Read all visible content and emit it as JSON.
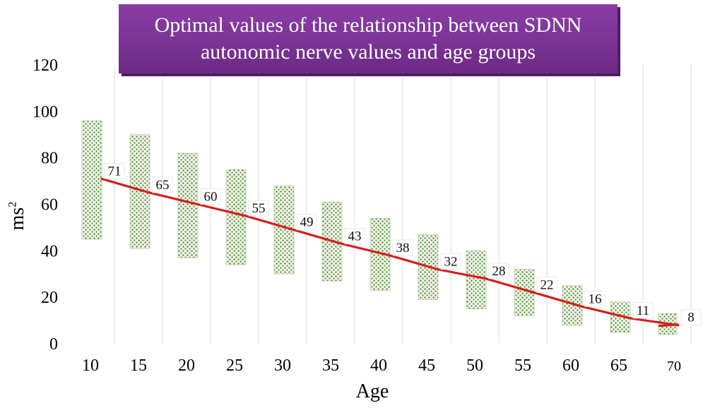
{
  "chart_data": {
    "type": "bar",
    "title_lines": [
      "Optimal values of the relationship between SDNN",
      "autonomic nerve values and age groups"
    ],
    "xlabel": "Age",
    "ylabel": "ms",
    "ylabel_superscript": "2",
    "ylim": [
      0,
      120
    ],
    "yticks": [
      "0",
      "20",
      "40",
      "60",
      "80",
      "100",
      "120"
    ],
    "categories": [
      "10",
      "15",
      "20",
      "25",
      "30",
      "35",
      "40",
      "45",
      "50",
      "55",
      "60",
      "65",
      "70"
    ],
    "series": [
      {
        "values": [
          71,
          65,
          60,
          55,
          49,
          43,
          38,
          32,
          28,
          22,
          16,
          11,
          8
        ]
      }
    ],
    "ranges": [
      [
        45,
        96
      ],
      [
        41,
        90
      ],
      [
        37,
        82
      ],
      [
        34,
        75
      ],
      [
        30,
        68
      ],
      [
        27,
        61
      ],
      [
        23,
        54
      ],
      [
        19,
        47
      ],
      [
        15,
        40
      ],
      [
        12,
        32
      ],
      [
        8,
        25
      ],
      [
        5,
        18
      ],
      [
        4,
        13
      ]
    ],
    "grid": true,
    "colors": {
      "line": "#d42020",
      "box_fill": "#eef3e4",
      "box_dots": "#3d7a2e",
      "title_bg": "#7b3396"
    }
  }
}
